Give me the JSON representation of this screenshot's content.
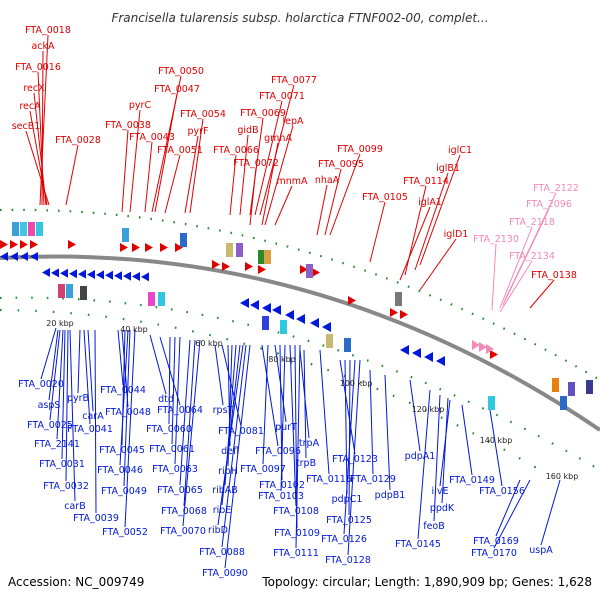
{
  "title": "Francisella tularensis subsp. holarctica FTNF002-00, complet...",
  "footer": {
    "accession": "Accession: NC_009749",
    "topology": "Topology: circular; Length: 1,890,909 bp; Genes: 1,628"
  },
  "colors": {
    "forward": "#e00000",
    "reverse": "#0018d8",
    "rna": "#f28ab8",
    "backbone": "#888888"
  },
  "ticks": [
    {
      "label": "20 kbp"
    },
    {
      "label": "40 kbp"
    },
    {
      "label": "60 kbp"
    },
    {
      "label": "80 kbp"
    },
    {
      "label": "100 kbp"
    },
    {
      "label": "120 kbp"
    },
    {
      "label": "140 kbp"
    },
    {
      "label": "160 kbp"
    }
  ],
  "forward_labels": [
    "FTA_0018",
    "ackA",
    "FTA_0016",
    "recX",
    "recA",
    "secB1",
    "FTA_0028",
    "FTA_0038",
    "pyrC",
    "FTA_0043",
    "FTA_0050",
    "FTA_0047",
    "FTA_0051",
    "FTA_0054",
    "pyrF",
    "FTA_0077",
    "FTA_0071",
    "FTA_0069",
    "gidB",
    "FTA_0066",
    "lepA",
    "gmhA",
    "FTA_0072",
    "mnmA",
    "FTA_0099",
    "FTA_0095",
    "nhaA",
    "FTA_0105",
    "iglC1",
    "iglB1",
    "FTA_0114",
    "iglA1",
    "iglD1",
    "FTA_0138"
  ],
  "rna_labels": [
    "FTA_2122",
    "FTA_2096",
    "FTA_2118",
    "FTA_2130",
    "FTA_2134"
  ],
  "reverse_labels": [
    "FTA_0020",
    "aspS",
    "FTA_0025",
    "FTA_2141",
    "FTA_0031",
    "FTA_0032",
    "carB",
    "pyrB",
    "FTA_0041",
    "carA",
    "FTA_0039",
    "FTA_0044",
    "FTA_0048",
    "FTA_0045",
    "FTA_0046",
    "FTA_0049",
    "FTA_0052",
    "dtd",
    "FTA_0064",
    "FTA_0060",
    "FTA_0061",
    "FTA_0063",
    "FTA_0065",
    "FTA_0068",
    "FTA_0070",
    "rpsT",
    "FTA_0081",
    "defl",
    "ribH",
    "ribAB",
    "ribE",
    "ribD",
    "FTA_0088",
    "FTA_0090",
    "FTA_0096",
    "FTA_0097",
    "purT",
    "FTA_0102",
    "FTA_0103",
    "FTA_0108",
    "FTA_0109",
    "FTA_0111",
    "trpA",
    "trpB",
    "FTA_0116",
    "FTA_0123",
    "pdpC1",
    "FTA_0125",
    "FTA_0126",
    "FTA_0128",
    "FTA_0129",
    "pdpB1",
    "pdpA1",
    "FTA_0145",
    "feoB",
    "ppdK",
    "ilvE",
    "FTA_0149",
    "FTA_0156",
    "FTA_0169",
    "FTA_0170",
    "uspA"
  ]
}
